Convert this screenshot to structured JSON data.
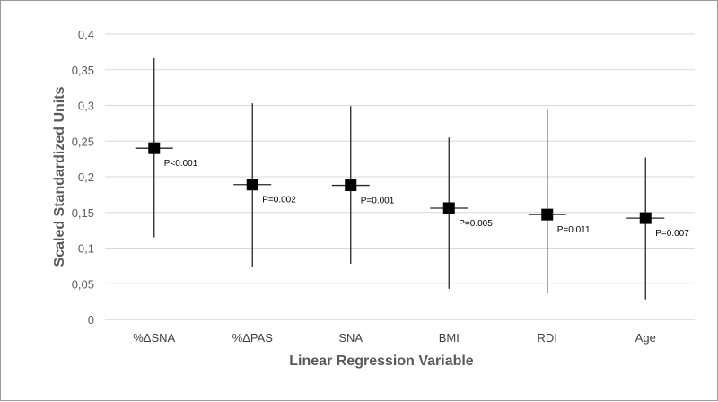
{
  "chart_data": {
    "type": "scatter",
    "title": "",
    "xlabel": "Linear Regression Variable",
    "ylabel": "Scaled Standardized Units",
    "ylim": [
      0,
      0.4
    ],
    "y_ticks": [
      "0",
      "0,05",
      "0,1",
      "0,15",
      "0,2",
      "0,25",
      "0,3",
      "0,35",
      "0,4"
    ],
    "y_tick_values": [
      0,
      0.05,
      0.1,
      0.15,
      0.2,
      0.25,
      0.3,
      0.35,
      0.4
    ],
    "grid": true,
    "legend": "none",
    "categories": [
      "%ΔSNA",
      "%ΔPAS",
      "SNA",
      "BMI",
      "RDI",
      "Age"
    ],
    "estimates": [
      0.24,
      0.189,
      0.188,
      0.156,
      0.147,
      0.142
    ],
    "upper": [
      0.366,
      0.303,
      0.299,
      0.255,
      0.294,
      0.227
    ],
    "lower": [
      0.115,
      0.073,
      0.078,
      0.043,
      0.036,
      0.028
    ],
    "p_values": [
      "P<0.001",
      "P=0.002",
      "P=0.001",
      "P=0.005",
      "P=0.011",
      "P=0.007"
    ],
    "colors": {
      "marker": "#000000",
      "whisker": "#262626",
      "grid": "#d9d9d9",
      "axis": "#bfbfbf"
    }
  }
}
